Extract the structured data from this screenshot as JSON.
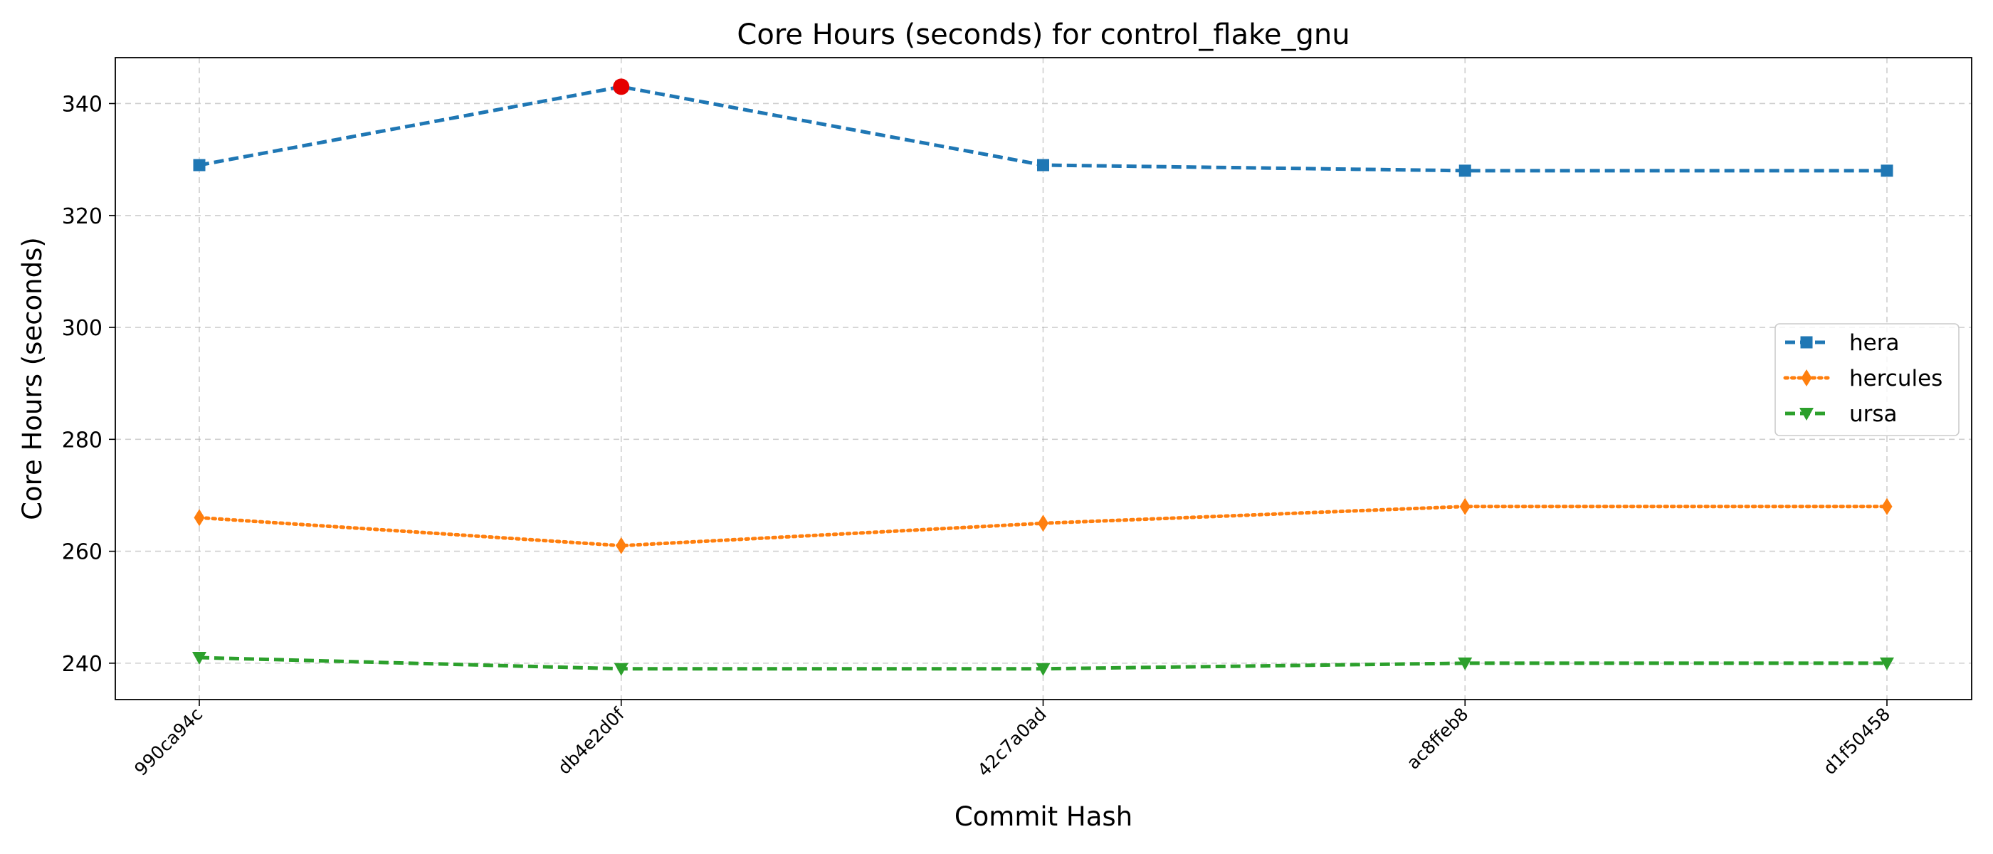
{
  "chart_data": {
    "type": "line",
    "title": "Core Hours (seconds) for control_flake_gnu",
    "xlabel": "Commit Hash",
    "ylabel": "Core Hours (seconds)",
    "categories": [
      "990ca94c",
      "db4e2d0f",
      "42c7a0ad",
      "ac8ffeb8",
      "d1f50458"
    ],
    "ylim": [
      233.5,
      348.2
    ],
    "yticks": [
      240,
      260,
      280,
      300,
      320,
      340
    ],
    "grid": true,
    "legend_position": "center-right",
    "series": [
      {
        "name": "hera",
        "values": [
          329,
          343,
          329,
          328,
          328
        ],
        "color": "#1f77b4",
        "line_style": "dashed",
        "marker": "square"
      },
      {
        "name": "hercules",
        "values": [
          266,
          261,
          265,
          268,
          268
        ],
        "color": "#ff7f0e",
        "line_style": "dotted",
        "marker": "diamond"
      },
      {
        "name": "ursa",
        "values": [
          241,
          239,
          239,
          240,
          240
        ],
        "color": "#2ca02c",
        "line_style": "dashed",
        "marker": "triangle-down"
      }
    ],
    "highlight": {
      "series": "hera",
      "category": "db4e2d0f",
      "value": 343,
      "color": "#e50000",
      "marker": "circle"
    }
  }
}
